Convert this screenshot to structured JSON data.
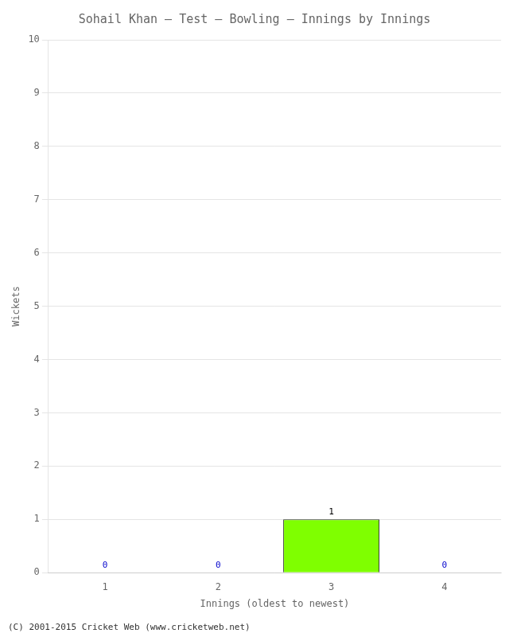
{
  "chart_data": {
    "type": "bar",
    "title": "Sohail Khan – Test – Bowling – Innings by Innings",
    "xlabel": "Innings (oldest to newest)",
    "ylabel": "Wickets",
    "categories": [
      1,
      2,
      3,
      4
    ],
    "values": [
      0,
      0,
      1,
      0
    ],
    "colors": [
      "#ffffff",
      "#ffffff",
      "#7fff00",
      "#ffffff"
    ],
    "ylim": [
      0,
      10
    ],
    "yticks": [
      0,
      1,
      2,
      3,
      4,
      5,
      6,
      7,
      8,
      9,
      10
    ],
    "grid": true,
    "data_labels": true,
    "annotations": [
      "(C) 2001-2015 Cricket Web (www.cricketweb.net)"
    ]
  }
}
